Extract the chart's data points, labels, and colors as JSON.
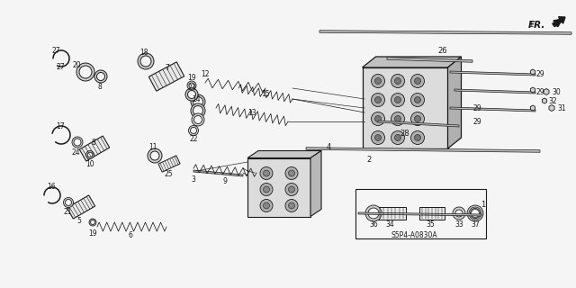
{
  "bg_color": "#f5f5f5",
  "line_color": "#1a1a1a",
  "diagram_code": "S5P4-A0830A",
  "fr_label": "FR.",
  "fig_width": 6.4,
  "fig_height": 3.2,
  "dpi": 100,
  "gray_fill": "#d0d0d0",
  "light_gray": "#e8e8e8",
  "mid_gray": "#888888"
}
